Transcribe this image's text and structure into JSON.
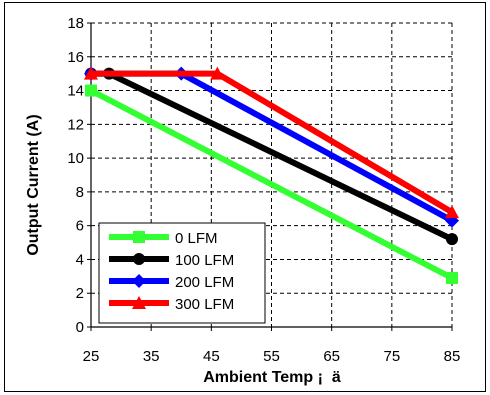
{
  "chart_data": {
    "type": "line",
    "title": "",
    "xlabel": "Ambient Temp ¡  ä",
    "ylabel": "Output Current (A)",
    "xlim": [
      25,
      85
    ],
    "ylim": [
      0,
      18
    ],
    "x_ticks": [
      "25",
      "35",
      "45",
      "55",
      "65",
      "75",
      "85"
    ],
    "y_ticks": [
      "0",
      "2",
      "4",
      "6",
      "8",
      "10",
      "12",
      "14",
      "16",
      "18"
    ],
    "grid": true,
    "legend_position": "bottom-left",
    "series": [
      {
        "name": "0 LFM",
        "color": "#33ff33",
        "marker": "square",
        "points": [
          [
            25,
            14.0
          ],
          [
            85,
            2.9
          ]
        ]
      },
      {
        "name": "100 LFM",
        "color": "#000000",
        "marker": "circle",
        "points": [
          [
            25,
            15.0
          ],
          [
            28,
            15.0
          ],
          [
            85,
            5.2
          ]
        ]
      },
      {
        "name": "200 LFM",
        "color": "#0000ff",
        "marker": "diamond",
        "points": [
          [
            25,
            15.0
          ],
          [
            40,
            15.0
          ],
          [
            85,
            6.3
          ]
        ]
      },
      {
        "name": "300 LFM",
        "color": "#ff0000",
        "marker": "triangle",
        "points": [
          [
            25,
            15.0
          ],
          [
            46,
            15.0
          ],
          [
            85,
            6.8
          ]
        ]
      }
    ]
  }
}
